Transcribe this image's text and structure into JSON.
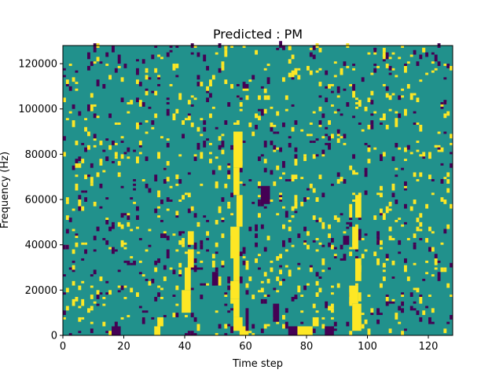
{
  "chart_data": {
    "type": "heatmap",
    "title": "Predicted : PM",
    "xlabel": "Time step",
    "ylabel": "Frequency (Hz)",
    "xlim": [
      0,
      128
    ],
    "ylim": [
      0,
      128000
    ],
    "xticks": [
      0,
      20,
      40,
      60,
      80,
      100,
      120
    ],
    "yticks": [
      0,
      20000,
      40000,
      60000,
      80000,
      100000,
      120000
    ],
    "n_time": 128,
    "n_freq": 128,
    "background_value": 0,
    "colors": {
      "low": "#440154",
      "mid": "#21918c",
      "high": "#fde725"
    },
    "highlights": [
      {
        "t": [
          56,
          59
        ],
        "f": [
          2000,
          8000
        ],
        "value": 1
      },
      {
        "t": [
          56,
          58
        ],
        "f": [
          8000,
          16000
        ],
        "value": 1
      },
      {
        "t": [
          55,
          58
        ],
        "f": [
          16000,
          24000
        ],
        "value": 1
      },
      {
        "t": [
          56,
          58
        ],
        "f": [
          24000,
          34000
        ],
        "value": 1
      },
      {
        "t": [
          55,
          58
        ],
        "f": [
          34000,
          48000
        ],
        "value": 1
      },
      {
        "t": [
          57,
          59
        ],
        "f": [
          48000,
          62000
        ],
        "value": 1
      },
      {
        "t": [
          56,
          58
        ],
        "f": [
          62000,
          74000
        ],
        "value": 1
      },
      {
        "t": [
          56,
          59
        ],
        "f": [
          74000,
          90000
        ],
        "value": 1
      },
      {
        "t": [
          58,
          61
        ],
        "f": [
          0,
          4000
        ],
        "value": 1
      },
      {
        "t": [
          39,
          42
        ],
        "f": [
          10000,
          20000
        ],
        "value": 1
      },
      {
        "t": [
          40,
          42
        ],
        "f": [
          20000,
          30000
        ],
        "value": 1
      },
      {
        "t": [
          41,
          43
        ],
        "f": [
          30000,
          38000
        ],
        "value": 1
      },
      {
        "t": [
          41,
          43
        ],
        "f": [
          40000,
          46000
        ],
        "value": 1
      },
      {
        "t": [
          95,
          98
        ],
        "f": [
          2000,
          14000
        ],
        "value": 1
      },
      {
        "t": [
          94,
          97
        ],
        "f": [
          14000,
          22000
        ],
        "value": 1
      },
      {
        "t": [
          96,
          98
        ],
        "f": [
          24000,
          34000
        ],
        "value": 1
      },
      {
        "t": [
          95,
          97
        ],
        "f": [
          38000,
          48000
        ],
        "value": 1
      },
      {
        "t": [
          96,
          98
        ],
        "f": [
          52000,
          62000
        ],
        "value": 1
      },
      {
        "t": [
          94,
          95
        ],
        "f": [
          52000,
          58000
        ],
        "value": 1
      },
      {
        "t": [
          77,
          82
        ],
        "f": [
          0,
          4000
        ],
        "value": 1
      },
      {
        "t": [
          31,
          33
        ],
        "f": [
          4000,
          8000
        ],
        "value": 1
      },
      {
        "t": [
          82,
          84
        ],
        "f": [
          4000,
          8000
        ],
        "value": 1
      },
      {
        "t": [
          30,
          32
        ],
        "f": [
          0,
          4000
        ],
        "value": 1
      },
      {
        "t": [
          16,
          19
        ],
        "f": [
          0,
          4000
        ],
        "value": -1
      },
      {
        "t": [
          74,
          77
        ],
        "f": [
          0,
          4000
        ],
        "value": -1
      },
      {
        "t": [
          86,
          89
        ],
        "f": [
          0,
          4000
        ],
        "value": -1
      },
      {
        "t": [
          65,
          68
        ],
        "f": [
          58000,
          66000
        ],
        "value": -1
      },
      {
        "t": [
          92,
          94
        ],
        "f": [
          40000,
          44000
        ],
        "value": -1
      },
      {
        "t": [
          49,
          51
        ],
        "f": [
          22000,
          28000
        ],
        "value": -1
      },
      {
        "t": [
          34,
          35
        ],
        "f": [
          34000,
          38000
        ],
        "value": -1
      },
      {
        "t": [
          69,
          71
        ],
        "f": [
          6000,
          14000
        ],
        "value": -1
      },
      {
        "t": [
          60,
          61
        ],
        "f": [
          2000,
          12000
        ],
        "value": -1
      },
      {
        "t": [
          18,
          19
        ],
        "f": [
          120000,
          124000
        ],
        "value": -1
      }
    ],
    "grid": false,
    "legend": "none"
  }
}
